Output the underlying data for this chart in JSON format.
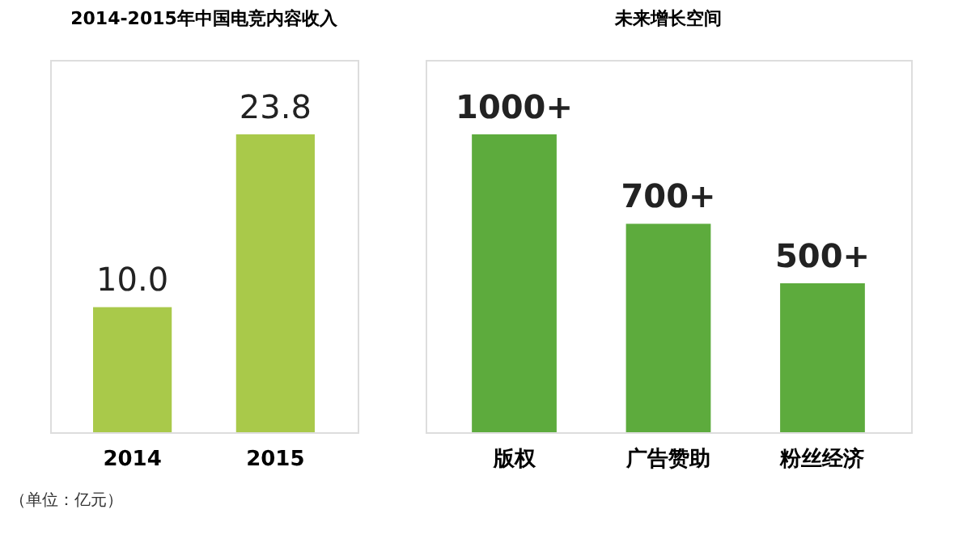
{
  "chart_data": [
    {
      "type": "bar",
      "title": "2014-2015年中国电竞内容收入",
      "categories": [
        "2014",
        "2015"
      ],
      "values": [
        10.0,
        23.8
      ],
      "value_labels": [
        "10.0",
        "23.8"
      ],
      "color": "#a9c94a",
      "annotations": [
        "（单位：亿元）"
      ]
    },
    {
      "type": "bar",
      "title": "未来增长空间",
      "categories": [
        "版权",
        "广告赞助",
        "粉丝经济"
      ],
      "values": [
        1000,
        700,
        500
      ],
      "value_labels": [
        "1000+",
        "700+",
        "500+"
      ],
      "color": "#5dab3d"
    }
  ]
}
